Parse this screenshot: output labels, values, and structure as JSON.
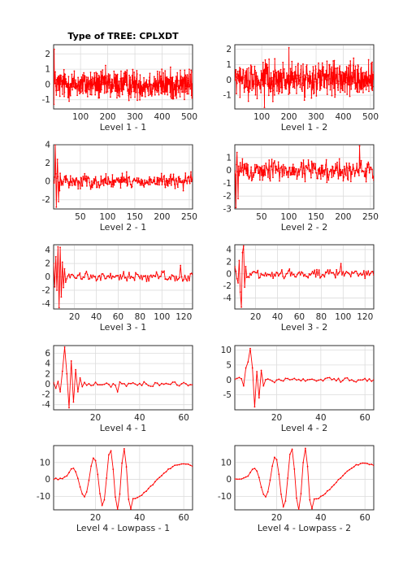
{
  "figure_title": "Type of TREE: CPLXDT",
  "colors": {
    "line": "#ff0000",
    "axes": "#262626",
    "grid": "#dcdcdc"
  },
  "chart_data": [
    {
      "type": "line",
      "title": "Type of TREE: CPLXDT",
      "xlabel": "Level 1 - 1",
      "xlim": [
        1,
        512
      ],
      "ylim": [
        -1.6,
        2.6
      ],
      "xticks": [
        100,
        200,
        300,
        400,
        500
      ],
      "yticks": [
        -1,
        0,
        1,
        2
      ],
      "series": [
        {
          "generator": "noise",
          "n": 512,
          "amp": 0.6,
          "spikes": [
            [
              3,
              2.3
            ],
            [
              2,
              -1.3
            ]
          ]
        }
      ]
    },
    {
      "type": "line",
      "title": "",
      "xlabel": "Level 1 - 2",
      "xlim": [
        1,
        512
      ],
      "ylim": [
        -1.9,
        2.3
      ],
      "xticks": [
        100,
        200,
        300,
        400,
        500
      ],
      "yticks": [
        -1,
        0,
        1,
        2
      ],
      "series": [
        {
          "generator": "noise",
          "n": 512,
          "amp": 0.65,
          "spikes": [
            [
              200,
              2.1
            ],
            [
              110,
              -1.8
            ]
          ]
        }
      ]
    },
    {
      "type": "line",
      "title": "",
      "xlabel": "Level 2 - 1",
      "xlim": [
        1,
        256
      ],
      "ylim": [
        -3,
        4
      ],
      "xticks": [
        50,
        100,
        150,
        200,
        250
      ],
      "yticks": [
        -2,
        0,
        2,
        4
      ],
      "series": [
        {
          "generator": "noise",
          "n": 256,
          "amp": 0.5,
          "spikes": [
            [
              4,
              4
            ],
            [
              6,
              -2.8
            ],
            [
              8,
              2.4
            ],
            [
              10,
              -2.2
            ]
          ]
        }
      ]
    },
    {
      "type": "line",
      "title": "",
      "xlabel": "Level 2 - 2",
      "xlim": [
        1,
        256
      ],
      "ylim": [
        -3,
        2
      ],
      "xticks": [
        50,
        100,
        150,
        200,
        250
      ],
      "yticks": [
        -3,
        -2,
        -1,
        0,
        1
      ],
      "series": [
        {
          "generator": "noise",
          "n": 256,
          "amp": 0.55,
          "spikes": [
            [
              3,
              -2.9
            ],
            [
              5,
              1.4
            ],
            [
              7,
              -2.2
            ],
            [
              230,
              1.9
            ]
          ]
        }
      ]
    },
    {
      "type": "line",
      "title": "",
      "xlabel": "Level 3 - 1",
      "xlim": [
        1,
        128
      ],
      "ylim": [
        -4.8,
        4.8
      ],
      "xticks": [
        20,
        40,
        60,
        80,
        100,
        120
      ],
      "yticks": [
        -4,
        -2,
        0,
        2,
        4
      ],
      "series": [
        {
          "generator": "burst",
          "n": 128,
          "burst": [
            2,
            -1.5,
            3,
            -2,
            4.5,
            -4.6,
            4.4,
            -3,
            2.2,
            -1.6,
            1.2,
            -0.8
          ],
          "amp": 0.45,
          "spikes": [
            [
              117,
              1.7
            ]
          ]
        }
      ]
    },
    {
      "type": "line",
      "title": "",
      "xlabel": "Level 3 - 2",
      "xlim": [
        1,
        128
      ],
      "ylim": [
        -5.8,
        4.8
      ],
      "xticks": [
        20,
        40,
        60,
        80,
        100,
        120
      ],
      "yticks": [
        -4,
        -2,
        0,
        2,
        4
      ],
      "series": [
        {
          "generator": "burst",
          "n": 128,
          "burst": [
            1.2,
            0.4,
            -0.8,
            -1.5,
            2.2,
            -3,
            -5.5,
            3.5,
            4.6,
            -2.2,
            1.2,
            -0.6
          ],
          "amp": 0.45,
          "spikes": [
            [
              98,
              1.7
            ]
          ]
        }
      ]
    },
    {
      "type": "line",
      "title": "",
      "xlabel": "Level 4 - 1",
      "xlim": [
        1,
        64
      ],
      "ylim": [
        -5,
        7.5
      ],
      "xticks": [
        20,
        40,
        60
      ],
      "yticks": [
        -4,
        -2,
        0,
        2,
        4,
        6
      ],
      "series": [
        {
          "generator": "burst",
          "n": 64,
          "burst": [
            0.3,
            -0.8,
            0.5,
            -1.5,
            2.5,
            7.2,
            2,
            -4.6,
            4.5,
            -3.5,
            2.8,
            -1.5,
            1.2,
            -0.5
          ],
          "amp": 0.35,
          "spikes": [
            [
              30,
              -1.5
            ]
          ]
        }
      ]
    },
    {
      "type": "line",
      "title": "",
      "xlabel": "Level 4 - 2",
      "xlim": [
        1,
        64
      ],
      "ylim": [
        -10,
        11.5
      ],
      "xticks": [
        20,
        40,
        60
      ],
      "yticks": [
        -5,
        0,
        5,
        10
      ],
      "series": [
        {
          "generator": "burst",
          "n": 64,
          "burst": [
            0.2,
            0.5,
            0.8,
            0.4,
            -2,
            4,
            6,
            10.5,
            4,
            -9,
            2.8,
            -6,
            3.2,
            -2
          ],
          "amp": 0.45,
          "spikes": []
        }
      ]
    },
    {
      "type": "line",
      "title": "",
      "xlabel": "Level 4 - Lowpass - 1",
      "xlim": [
        1,
        64
      ],
      "ylim": [
        -18,
        20
      ],
      "xticks": [
        20,
        40,
        60
      ],
      "yticks": [
        -10,
        0,
        10
      ],
      "series": [
        {
          "generator": "lowpass",
          "n": 64
        }
      ]
    },
    {
      "type": "line",
      "title": "",
      "xlabel": "Level 4 - Lowpass - 2",
      "xlim": [
        1,
        64
      ],
      "ylim": [
        -18,
        20
      ],
      "xticks": [
        20,
        40,
        60
      ],
      "yticks": [
        -10,
        0,
        10
      ],
      "series": [
        {
          "generator": "lowpass",
          "n": 64,
          "seed": 2
        }
      ]
    }
  ]
}
